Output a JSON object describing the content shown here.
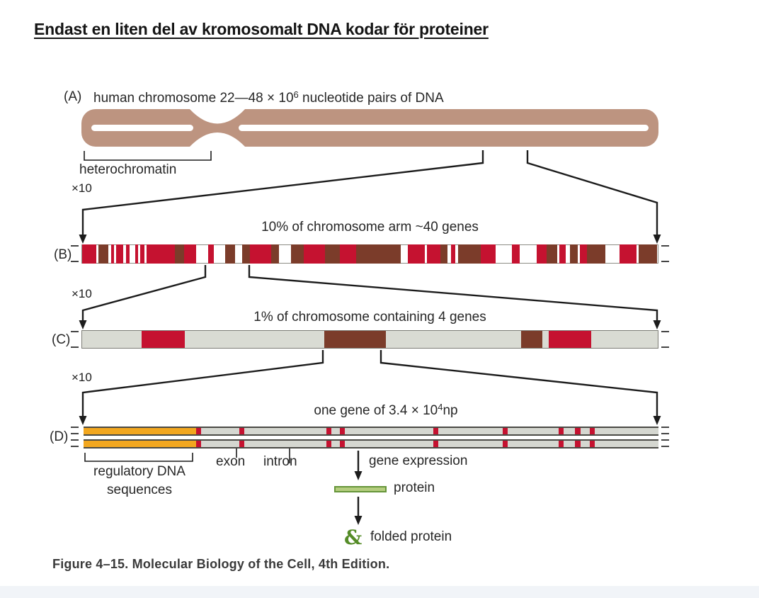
{
  "page": {
    "title": "Endast en liten del av kromosomalt DNA kodar för proteiner",
    "caption": "Figure 4–15. Molecular Biology of the Cell, 4th Edition."
  },
  "colors": {
    "tan": "#bd9480",
    "red": "#c51230",
    "brown": "#7b3c2a",
    "gray_c": "#d9dbd3",
    "gray_d": "#d5d7d0",
    "orange": "#f2a71f",
    "protein_fill": "#b4cd7e",
    "protein_border": "#66953a",
    "folded_green": "#558c28",
    "line": "#1c1c1c"
  },
  "labels": {
    "x10": "×10"
  },
  "panelA": {
    "label": "(A)",
    "title_prefix": "human chromosome 22—48 × 10",
    "title_exp": "6",
    "title_suffix": " nucleotide pairs of DNA",
    "heterochromatin": "heterochromatin"
  },
  "panelB": {
    "label": "(B)",
    "title": "10% of chromosome arm ~40 genes",
    "segments": [
      {
        "x": 0.0,
        "w": 0.0245,
        "c": "red"
      },
      {
        "x": 0.0282,
        "w": 0.0172,
        "c": "brown"
      },
      {
        "x": 0.0503,
        "w": 0.0049,
        "c": "red"
      },
      {
        "x": 0.0589,
        "w": 0.0123,
        "c": "red"
      },
      {
        "x": 0.0761,
        "w": 0.0061,
        "c": "red"
      },
      {
        "x": 0.092,
        "w": 0.0049,
        "c": "red"
      },
      {
        "x": 0.1006,
        "w": 0.0074,
        "c": "red"
      },
      {
        "x": 0.1117,
        "w": 0.0491,
        "c": "red"
      },
      {
        "x": 0.1607,
        "w": 0.016,
        "c": "brown"
      },
      {
        "x": 0.1767,
        "w": 0.0209,
        "c": "red"
      },
      {
        "x": 0.2184,
        "w": 0.011,
        "c": "red"
      },
      {
        "x": 0.2479,
        "w": 0.0184,
        "c": "brown"
      },
      {
        "x": 0.2785,
        "w": 0.0135,
        "c": "brown"
      },
      {
        "x": 0.292,
        "w": 0.0368,
        "c": "red"
      },
      {
        "x": 0.3288,
        "w": 0.0135,
        "c": "brown"
      },
      {
        "x": 0.3632,
        "w": 0.0221,
        "c": "brown"
      },
      {
        "x": 0.3853,
        "w": 0.0368,
        "c": "red"
      },
      {
        "x": 0.4221,
        "w": 0.0258,
        "c": "brown"
      },
      {
        "x": 0.4479,
        "w": 0.0282,
        "c": "red"
      },
      {
        "x": 0.4761,
        "w": 0.0773,
        "c": "brown"
      },
      {
        "x": 0.5656,
        "w": 0.0294,
        "c": "red"
      },
      {
        "x": 0.5988,
        "w": 0.0233,
        "c": "red"
      },
      {
        "x": 0.6221,
        "w": 0.0123,
        "c": "brown"
      },
      {
        "x": 0.6405,
        "w": 0.0074,
        "c": "red"
      },
      {
        "x": 0.6528,
        "w": 0.0393,
        "c": "brown"
      },
      {
        "x": 0.692,
        "w": 0.0258,
        "c": "red"
      },
      {
        "x": 0.7472,
        "w": 0.0135,
        "c": "red"
      },
      {
        "x": 0.7902,
        "w": 0.0172,
        "c": "red"
      },
      {
        "x": 0.8074,
        "w": 0.0184,
        "c": "brown"
      },
      {
        "x": 0.8294,
        "w": 0.011,
        "c": "red"
      },
      {
        "x": 0.8479,
        "w": 0.0135,
        "c": "brown"
      },
      {
        "x": 0.865,
        "w": 0.0123,
        "c": "red"
      },
      {
        "x": 0.8773,
        "w": 0.0319,
        "c": "brown"
      },
      {
        "x": 0.9337,
        "w": 0.0294,
        "c": "red"
      },
      {
        "x": 0.9669,
        "w": 0.0319,
        "c": "brown"
      }
    ]
  },
  "panelC": {
    "label": "(C)",
    "title": "1% of chromosome containing 4 genes",
    "segments": [
      {
        "x": 0.103,
        "w": 0.075,
        "c": "red"
      },
      {
        "x": 0.421,
        "w": 0.107,
        "c": "brown"
      },
      {
        "x": 0.763,
        "w": 0.036,
        "c": "brown"
      },
      {
        "x": 0.81,
        "w": 0.075,
        "c": "red"
      }
    ]
  },
  "panelD": {
    "label": "(D)",
    "title_prefix": "one gene of 3.4 × 10",
    "title_exp": "4",
    "title_suffix": "np",
    "orange_region": {
      "x": 0.0,
      "w": 0.196
    },
    "red_marks": [
      0.196,
      0.271,
      0.422,
      0.446,
      0.608,
      0.729,
      0.826,
      0.855,
      0.88
    ],
    "mark_width": 0.009,
    "regulatory_line1": "regulatory DNA",
    "regulatory_line2": "sequences",
    "exon": "exon",
    "intron": "intron",
    "gene_expression": "gene expression",
    "protein": "protein",
    "folded_protein_glyph": "&",
    "folded_protein": "folded protein"
  }
}
